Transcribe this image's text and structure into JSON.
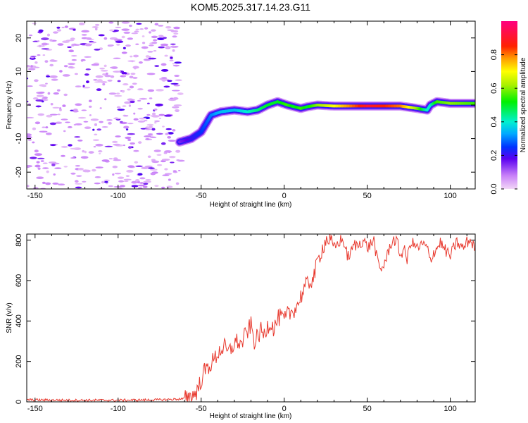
{
  "title": "KOM5.2025.317.14.23.G11",
  "chart_data": [
    {
      "type": "heatmap",
      "name": "spectrogram",
      "xlabel": "Height of straight line (km)",
      "ylabel": "Frequency (Hz)",
      "xlim": [
        -155,
        115
      ],
      "ylim": [
        -25,
        25
      ],
      "xticks": [
        -150,
        -100,
        -50,
        0,
        50,
        100
      ],
      "yticks": [
        -20,
        -10,
        0,
        10,
        20
      ],
      "colorbar": {
        "label": "Normalized spectral amplitude",
        "range": [
          0,
          1
        ],
        "ticks": [
          0.0,
          0.2,
          0.4,
          0.6,
          0.8
        ],
        "tick_labels": [
          "0.0",
          "0.2",
          "0.4",
          "0.6",
          "0.8"
        ]
      },
      "ridge": {
        "x": [
          -63,
          -56,
          -50,
          -44,
          -38,
          -30,
          -22,
          -16,
          -10,
          -4,
          2,
          6,
          10,
          14,
          20,
          30,
          50,
          70,
          80,
          86,
          88,
          92,
          100,
          115
        ],
        "freq": [
          -11,
          -10,
          -8,
          -3,
          -2,
          -1.5,
          -2,
          -1.5,
          0,
          1,
          0,
          -0.5,
          -1,
          -0.5,
          0,
          -0.3,
          -0.3,
          -0.3,
          -1,
          -1.5,
          0,
          1,
          0.5,
          0.5
        ],
        "amplitude": [
          0.15,
          0.2,
          0.25,
          0.3,
          0.35,
          0.35,
          0.4,
          0.45,
          0.5,
          0.5,
          0.55,
          0.5,
          0.55,
          0.5,
          0.6,
          0.7,
          0.9,
          0.8,
          0.6,
          0.4,
          0.4,
          0.55,
          0.6,
          0.55
        ]
      }
    },
    {
      "type": "line",
      "name": "snr",
      "xlabel": "Height of straight line (km)",
      "ylabel": "SNR (v/v)",
      "xlim": [
        -155,
        115
      ],
      "ylim": [
        0,
        830
      ],
      "xticks": [
        -150,
        -100,
        -50,
        0,
        50,
        100
      ],
      "yticks": [
        0,
        200,
        400,
        600,
        800
      ],
      "color": "#e8392e",
      "series": [
        {
          "name": "SNR",
          "x": [
            -155,
            -130,
            -100,
            -75,
            -60,
            -55,
            -52,
            -50,
            -48,
            -46,
            -44,
            -42,
            -40,
            -38,
            -36,
            -34,
            -32,
            -30,
            -28,
            -26,
            -24,
            -22,
            -20,
            -18,
            -16,
            -14,
            -12,
            -10,
            -8,
            -6,
            -4,
            -2,
            0,
            2,
            4,
            6,
            8,
            10,
            12,
            14,
            16,
            18,
            20,
            22,
            24,
            26,
            28,
            30,
            32,
            34,
            36,
            38,
            40,
            42,
            44,
            46,
            48,
            50,
            52,
            54,
            56,
            58,
            60,
            62,
            64,
            66,
            68,
            70,
            72,
            74,
            76,
            78,
            80,
            82,
            84,
            86,
            88,
            90,
            92,
            94,
            96,
            98,
            100,
            102,
            104,
            106,
            108,
            110,
            112,
            115
          ],
          "y": [
            10,
            8,
            8,
            10,
            15,
            30,
            60,
            110,
            150,
            170,
            190,
            210,
            240,
            260,
            270,
            240,
            260,
            290,
            300,
            280,
            320,
            350,
            380,
            300,
            320,
            350,
            330,
            380,
            390,
            360,
            410,
            420,
            400,
            430,
            440,
            460,
            480,
            520,
            560,
            580,
            600,
            620,
            690,
            740,
            780,
            810,
            790,
            760,
            780,
            800,
            790,
            720,
            730,
            780,
            770,
            790,
            800,
            760,
            780,
            800,
            700,
            650,
            680,
            720,
            780,
            800,
            790,
            720,
            760,
            700,
            790,
            780,
            760,
            770,
            780,
            760,
            700,
            740,
            760,
            790,
            760,
            740,
            720,
            760,
            790,
            770,
            760,
            790,
            800,
            760
          ]
        }
      ]
    }
  ]
}
